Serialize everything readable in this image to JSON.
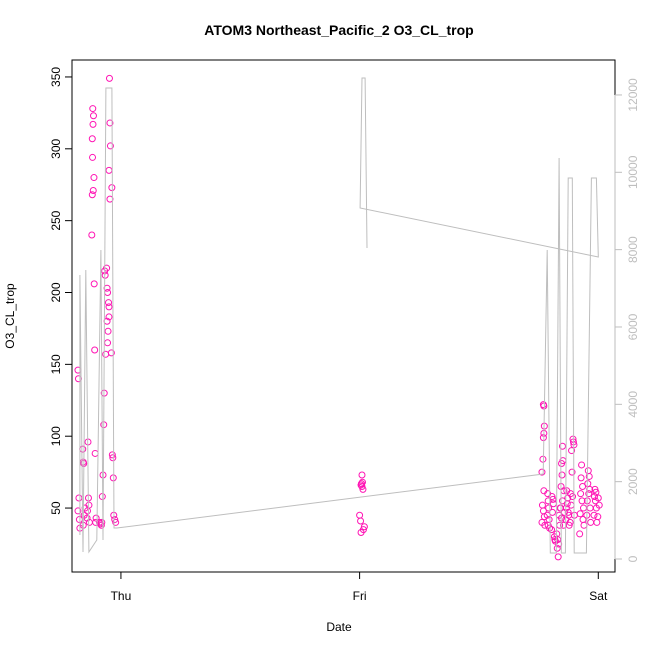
{
  "chart_data": {
    "type": "scatter",
    "title": "ATOM3 Northeast_Pacific_2 O3_CL_trop",
    "xlabel": "Date",
    "ylabel": "O3_CL_trop",
    "xlim": [
      -0.205,
      2.07
    ],
    "xticks": [
      {
        "value": 0,
        "label": "Thu"
      },
      {
        "value": 1,
        "label": "Fri"
      },
      {
        "value": 2,
        "label": "Sat"
      }
    ],
    "ylim": [
      5.5,
      361.8
    ],
    "yticks": [
      50,
      100,
      150,
      200,
      250,
      300,
      350
    ],
    "y2lim": [
      -336,
      12904
    ],
    "y2ticks": [
      0,
      2000,
      4000,
      6000,
      8000,
      10000,
      12000
    ],
    "y2color": "#bebebe",
    "series": [
      {
        "color": "#ff14b4",
        "x": [
          -0.18,
          -0.178,
          -0.176,
          -0.18,
          -0.174,
          -0.172,
          -0.16,
          -0.158,
          -0.156,
          -0.15,
          -0.154,
          -0.158,
          -0.138,
          -0.136,
          -0.134,
          -0.14,
          -0.132,
          -0.142,
          -0.118,
          -0.115,
          -0.117,
          -0.12,
          -0.119,
          -0.113,
          -0.116,
          -0.12,
          -0.122,
          -0.112,
          -0.11,
          -0.108,
          -0.106,
          -0.104,
          -0.09,
          -0.086,
          -0.082,
          -0.08,
          -0.078,
          -0.07,
          -0.072,
          -0.075,
          -0.068,
          -0.066,
          -0.06,
          -0.058,
          -0.056,
          -0.064,
          -0.058,
          -0.05,
          -0.052,
          -0.05,
          -0.054,
          -0.056,
          -0.048,
          -0.046,
          -0.044,
          -0.05,
          -0.046,
          -0.04,
          -0.038,
          -0.036,
          -0.034,
          -0.032,
          -0.03,
          -0.026,
          -0.022,
          1.01,
          1.012,
          1.008,
          1.006,
          1.01,
          1.014,
          1.0,
          1.004,
          1.02,
          1.016,
          1.006,
          1.77,
          1.772,
          1.774,
          1.772,
          1.77,
          1.768,
          1.764,
          1.772,
          1.766,
          1.77,
          1.774,
          1.764,
          1.776,
          1.788,
          1.79,
          1.792,
          1.786,
          1.794,
          1.79,
          1.796,
          1.806,
          1.81,
          1.812,
          1.808,
          1.804,
          1.816,
          1.818,
          1.82,
          1.826,
          1.83,
          1.834,
          1.832,
          1.828,
          1.836,
          1.84,
          1.838,
          1.85,
          1.852,
          1.846,
          1.848,
          1.844,
          1.856,
          1.85,
          1.842,
          1.858,
          1.846,
          1.854,
          1.868,
          1.872,
          1.87,
          1.866,
          1.874,
          1.876,
          1.864,
          1.878,
          1.894,
          1.896,
          1.898,
          1.888,
          1.89,
          1.884,
          1.892,
          1.886,
          1.9,
          1.882,
          1.93,
          1.928,
          1.934,
          1.926,
          1.932,
          1.938,
          1.924,
          1.936,
          1.94,
          1.922,
          1.958,
          1.962,
          1.956,
          1.964,
          1.96,
          1.954,
          1.966,
          1.952,
          1.968,
          1.986,
          1.99,
          1.984,
          1.988,
          1.992,
          1.982,
          1.994,
          2.0,
          2.004,
          1.998
        ],
        "values": [
          146,
          140,
          57,
          48,
          42,
          36,
          91,
          82,
          81,
          50,
          45,
          38,
          96,
          57,
          52,
          48,
          40,
          43,
          328,
          323,
          317,
          307,
          294,
          280,
          271,
          268,
          240,
          206,
          160,
          88,
          40,
          43,
          40,
          39,
          38,
          40,
          58,
          130,
          108,
          73,
          215,
          212,
          217,
          203,
          200,
          157,
          180,
          190,
          193,
          183,
          173,
          165,
          349,
          318,
          302,
          285,
          265,
          158,
          273,
          87,
          85,
          71,
          45,
          42,
          40,
          73,
          68,
          67,
          66,
          65,
          63,
          45,
          41,
          37,
          35,
          33,
          122,
          121,
          107,
          102,
          99,
          84,
          75,
          62,
          52,
          48,
          44,
          40,
          38,
          60,
          55,
          50,
          45,
          42,
          38,
          36,
          58,
          56,
          53,
          47,
          35,
          30,
          28,
          27,
          32,
          28,
          25,
          16,
          22,
          45,
          50,
          38,
          93,
          83,
          81,
          73,
          65,
          62,
          55,
          50,
          47,
          43,
          38,
          62,
          57,
          53,
          50,
          47,
          45,
          42,
          38,
          98,
          96,
          94,
          90,
          75,
          60,
          58,
          52,
          45,
          40,
          80,
          71,
          65,
          60,
          55,
          50,
          46,
          42,
          38,
          32,
          76,
          72,
          67,
          63,
          60,
          55,
          50,
          45,
          40,
          63,
          61,
          58,
          55,
          50,
          45,
          40,
          57,
          52,
          44
        ]
      },
      {
        "color": "#bebebe",
        "axis": "y2",
        "x": [
          -0.172,
          -0.172,
          -0.159,
          -0.147,
          -0.134,
          -0.101,
          -0.084,
          -0.075,
          -0.063,
          -0.038,
          -0.029,
          -0.017,
          1.769,
          1.786,
          1.799,
          1.811,
          1.824,
          1.836,
          1.845,
          1.862,
          1.874,
          1.891,
          1.899,
          1.95,
          1.971,
          1.992,
          2.0,
          1.002,
          1.01,
          1.023,
          1.031
        ],
        "values": [
          620,
          7344,
          181,
          7474,
          181,
          491,
          7991,
          491,
          12180,
          12180,
          802,
          802,
          2198,
          7991,
          155,
          155,
          155,
          10370,
          155,
          155,
          9853,
          9853,
          155,
          155,
          9853,
          9853,
          7810,
          9077,
          12439,
          12439,
          8043
        ]
      }
    ]
  }
}
